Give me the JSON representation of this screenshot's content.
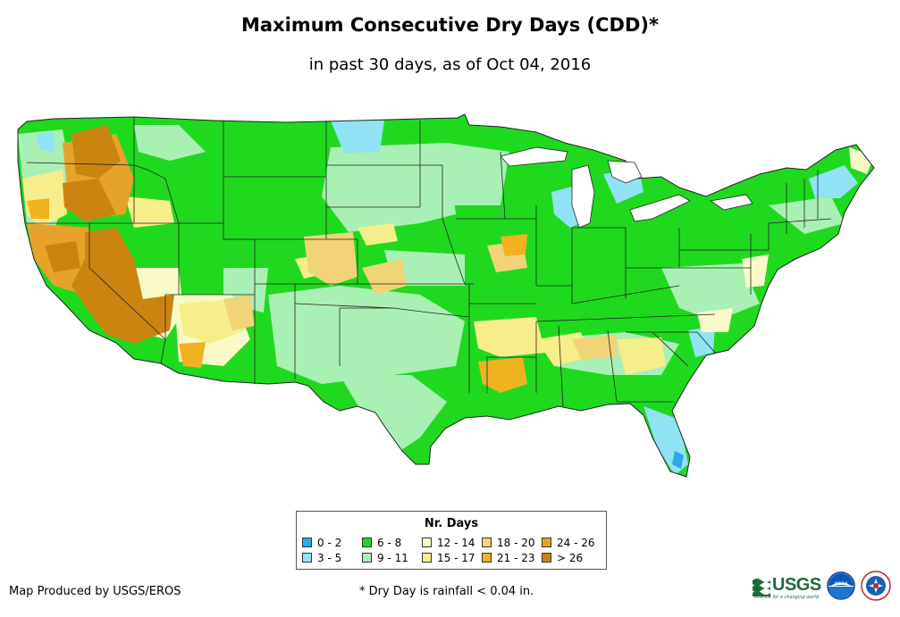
{
  "title": "Maximum Consecutive Dry Days (CDD)*",
  "subtitle": "in past 30 days, as of Oct 04, 2016",
  "legend": {
    "title": "Nr. Days",
    "items": [
      {
        "label": "0 - 2",
        "color": "#2ea8e8"
      },
      {
        "label": "3 - 5",
        "color": "#8fe3f5"
      },
      {
        "label": "6 - 8",
        "color": "#1fd91f"
      },
      {
        "label": "9 - 11",
        "color": "#a9f0b4"
      },
      {
        "label": "12 - 14",
        "color": "#fafac8"
      },
      {
        "label": "15 - 17",
        "color": "#f6ee8a"
      },
      {
        "label": "18 - 20",
        "color": "#f0d477"
      },
      {
        "label": "21 - 23",
        "color": "#f1b21f"
      },
      {
        "label": "24 - 26",
        "color": "#e6a32a"
      },
      {
        "label": "> 26",
        "color": "#cc8410"
      }
    ]
  },
  "credit": "Map Produced by USGS/EROS",
  "footnote": "* Dry Day is rainfall < 0.04 in.",
  "logos": {
    "usgs_text": "USGS",
    "usgs_tagline": "science for a changing world",
    "noaa_text": "noaa"
  }
}
